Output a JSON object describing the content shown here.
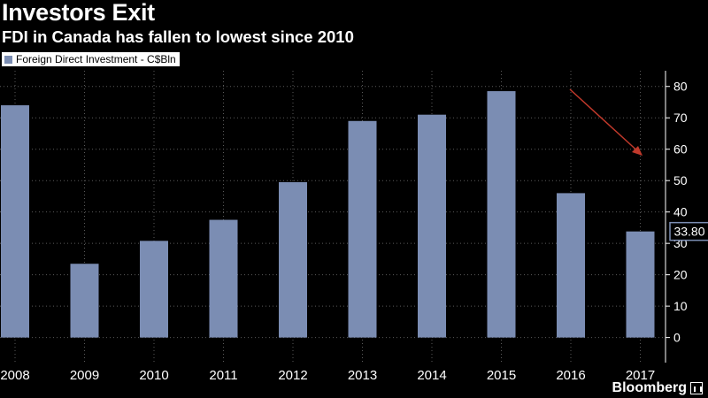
{
  "header": {
    "title": "Investors Exit",
    "subtitle": "FDI in Canada has fallen to lowest since 2010"
  },
  "chart_data": {
    "type": "bar",
    "categories": [
      "2008",
      "2009",
      "2010",
      "2011",
      "2012",
      "2013",
      "2014",
      "2015",
      "2016",
      "2017"
    ],
    "series": [
      {
        "name": "Foreign Direct Investment - C$Bln",
        "values": [
          74,
          23.5,
          30.8,
          37.5,
          49.5,
          69,
          71,
          78.5,
          46,
          33.8
        ],
        "color": "#7b8db3"
      }
    ],
    "ylim": [
      -8,
      85
    ],
    "yticks": [
      0,
      10,
      20,
      30,
      40,
      50,
      60,
      70,
      80
    ],
    "y_axis_side": "right",
    "grid": true,
    "legend_position": "top-left",
    "last_value_label": "33.80",
    "trend_arrow_color": "#c0392b"
  },
  "branding": {
    "logo": "Bloomberg"
  }
}
